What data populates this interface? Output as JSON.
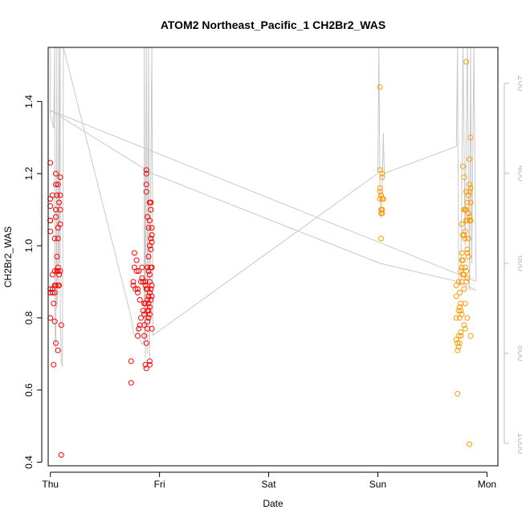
{
  "chart_data": {
    "type": "scatter",
    "title": "ATOM2 Northeast_Pacific_1 CH2Br2_WAS",
    "xlabel": "Date",
    "ylabel": "CH2Br2_WAS",
    "x_ticks": [
      "Thu",
      "Fri",
      "Sat",
      "Sun",
      "Mon"
    ],
    "xlim": [
      -0.02,
      4.1
    ],
    "ylim": [
      0.39,
      1.55
    ],
    "y_ticks": [
      "0.4",
      "0.6",
      "0.8",
      "1.0",
      "1.2",
      "1.4"
    ],
    "y2_ticks": [
      "200",
      "400",
      "600",
      "800",
      "1000"
    ],
    "y2lim": [
      1050,
      120
    ],
    "colors": {
      "series_red": "#ff0000",
      "series_orange": "#ff9900",
      "line": "#c8c8c8",
      "axis": "#000000",
      "right_axis": "#bdbdbd"
    },
    "series": [
      {
        "color": "red",
        "points": [
          [
            0.0,
            1.23
          ],
          [
            0.0,
            1.13
          ],
          [
            0.0,
            1.11
          ],
          [
            0.0,
            1.07
          ],
          [
            0.0,
            1.07
          ],
          [
            0.0,
            1.04
          ],
          [
            0.0,
            0.88
          ],
          [
            0.0,
            0.87
          ],
          [
            0.0,
            0.8
          ],
          [
            0.02,
            1.14
          ],
          [
            0.02,
            0.92
          ],
          [
            0.02,
            0.88
          ],
          [
            0.02,
            0.87
          ],
          [
            0.03,
            0.67
          ],
          [
            0.03,
            0.84
          ],
          [
            0.04,
            1.02
          ],
          [
            0.04,
            0.93
          ],
          [
            0.04,
            0.89
          ],
          [
            0.04,
            0.87
          ],
          [
            0.04,
            0.79
          ],
          [
            0.05,
            1.2
          ],
          [
            0.05,
            1.17
          ],
          [
            0.05,
            1.1
          ],
          [
            0.05,
            1.08
          ],
          [
            0.05,
            0.89
          ],
          [
            0.05,
            0.73
          ],
          [
            0.06,
            1.14
          ],
          [
            0.06,
            0.97
          ],
          [
            0.06,
            0.93
          ],
          [
            0.07,
            1.17
          ],
          [
            0.07,
            1.05
          ],
          [
            0.07,
            1.02
          ],
          [
            0.07,
            0.94
          ],
          [
            0.07,
            0.93
          ],
          [
            0.07,
            0.89
          ],
          [
            0.07,
            0.71
          ],
          [
            0.08,
            1.12
          ],
          [
            0.08,
            0.92
          ],
          [
            0.08,
            0.89
          ],
          [
            0.09,
            1.19
          ],
          [
            0.09,
            1.14
          ],
          [
            0.09,
            1.1
          ],
          [
            0.09,
            1.06
          ],
          [
            0.09,
            0.93
          ],
          [
            0.1,
            0.78
          ],
          [
            0.1,
            0.42
          ],
          [
            0.74,
            0.68
          ],
          [
            0.74,
            0.62
          ],
          [
            0.76,
            0.89
          ],
          [
            0.76,
            0.9
          ],
          [
            0.77,
            0.94
          ],
          [
            0.77,
            0.98
          ],
          [
            0.78,
            0.88
          ],
          [
            0.79,
            0.93
          ],
          [
            0.79,
            0.96
          ],
          [
            0.8,
            0.87
          ],
          [
            0.8,
            0.75
          ],
          [
            0.8,
            0.88
          ],
          [
            0.81,
            0.77
          ],
          [
            0.81,
            0.93
          ],
          [
            0.82,
            0.85
          ],
          [
            0.82,
            0.78
          ],
          [
            0.83,
            0.8
          ],
          [
            0.83,
            0.9
          ],
          [
            0.84,
            0.91
          ],
          [
            0.84,
            0.94
          ],
          [
            0.85,
            0.9
          ],
          [
            0.85,
            0.82
          ],
          [
            0.86,
            0.81
          ],
          [
            0.86,
            0.84
          ],
          [
            0.86,
            0.78
          ],
          [
            0.86,
            0.75
          ],
          [
            0.87,
            0.9
          ],
          [
            0.87,
            0.89
          ],
          [
            0.87,
            0.84
          ],
          [
            0.87,
            0.67
          ],
          [
            0.88,
            0.88
          ],
          [
            0.88,
            1.21
          ],
          [
            0.88,
            1.2
          ],
          [
            0.88,
            1.17
          ],
          [
            0.88,
            1.15
          ],
          [
            0.88,
            0.73
          ],
          [
            0.88,
            0.66
          ],
          [
            0.89,
            1.08
          ],
          [
            0.89,
            0.94
          ],
          [
            0.89,
            0.88
          ],
          [
            0.89,
            0.85
          ],
          [
            0.89,
            0.82
          ],
          [
            0.89,
            0.79
          ],
          [
            0.89,
            0.77
          ],
          [
            0.9,
            1.05
          ],
          [
            0.9,
            0.97
          ],
          [
            0.9,
            0.93
          ],
          [
            0.9,
            0.86
          ],
          [
            0.9,
            0.84
          ],
          [
            0.9,
            0.82
          ],
          [
            0.9,
            0.8
          ],
          [
            0.91,
            1.12
          ],
          [
            0.91,
            1.07
          ],
          [
            0.91,
            1.0
          ],
          [
            0.91,
            0.92
          ],
          [
            0.91,
            0.9
          ],
          [
            0.91,
            0.87
          ],
          [
            0.91,
            0.83
          ],
          [
            0.91,
            0.81
          ],
          [
            0.91,
            0.68
          ],
          [
            0.91,
            0.67
          ],
          [
            0.92,
            1.12
          ],
          [
            0.92,
            1.1
          ],
          [
            0.92,
            1.02
          ],
          [
            0.92,
            0.99
          ],
          [
            0.92,
            0.94
          ],
          [
            0.92,
            0.88
          ],
          [
            0.92,
            0.85
          ],
          [
            0.93,
            1.05
          ],
          [
            0.93,
            1.03
          ],
          [
            0.93,
            1.01
          ],
          [
            0.93,
            0.94
          ],
          [
            0.93,
            0.89
          ],
          [
            0.93,
            0.86
          ],
          [
            0.93,
            0.77
          ]
        ]
      },
      {
        "color": "orange",
        "points": [
          [
            3.02,
            1.44
          ],
          [
            3.02,
            1.21
          ],
          [
            3.02,
            1.16
          ],
          [
            3.02,
            1.15
          ],
          [
            3.02,
            1.13
          ],
          [
            3.03,
            1.14
          ],
          [
            3.03,
            1.1
          ],
          [
            3.03,
            1.09
          ],
          [
            3.03,
            1.02
          ],
          [
            3.04,
            1.2
          ],
          [
            3.04,
            1.19
          ],
          [
            3.04,
            1.13
          ],
          [
            3.04,
            1.1
          ],
          [
            3.04,
            1.09
          ],
          [
            3.05,
            1.13
          ],
          [
            3.72,
            0.89
          ],
          [
            3.72,
            0.86
          ],
          [
            3.72,
            0.8
          ],
          [
            3.72,
            0.74
          ],
          [
            3.73,
            0.73
          ],
          [
            3.73,
            0.71
          ],
          [
            3.73,
            0.59
          ],
          [
            3.74,
            0.9
          ],
          [
            3.74,
            0.82
          ],
          [
            3.74,
            0.75
          ],
          [
            3.74,
            0.72
          ],
          [
            3.75,
            0.87
          ],
          [
            3.75,
            0.83
          ],
          [
            3.75,
            0.8
          ],
          [
            3.75,
            0.73
          ],
          [
            3.76,
            0.93
          ],
          [
            3.76,
            0.84
          ],
          [
            3.76,
            0.82
          ],
          [
            3.76,
            0.76
          ],
          [
            3.76,
            0.75
          ],
          [
            3.77,
            1.06
          ],
          [
            3.77,
            0.98
          ],
          [
            3.77,
            0.96
          ],
          [
            3.77,
            0.94
          ],
          [
            3.77,
            0.9
          ],
          [
            3.77,
            0.81
          ],
          [
            3.78,
            1.22
          ],
          [
            3.78,
            1.03
          ],
          [
            3.78,
            0.96
          ],
          [
            3.78,
            0.92
          ],
          [
            3.79,
            1.19
          ],
          [
            3.79,
            1.1
          ],
          [
            3.79,
            1.03
          ],
          [
            3.79,
            0.92
          ],
          [
            3.79,
            0.88
          ],
          [
            3.79,
            0.78
          ],
          [
            3.8,
            1.1
          ],
          [
            3.8,
            1.04
          ],
          [
            3.8,
            1.02
          ],
          [
            3.8,
            0.94
          ],
          [
            3.8,
            0.84
          ],
          [
            3.8,
            0.77
          ],
          [
            3.81,
            1.51
          ],
          [
            3.81,
            1.15
          ],
          [
            3.81,
            1.1
          ],
          [
            3.81,
            1.07
          ],
          [
            3.81,
            0.93
          ],
          [
            3.81,
            0.9
          ],
          [
            3.82,
            1.12
          ],
          [
            3.82,
            1.07
          ],
          [
            3.82,
            0.99
          ],
          [
            3.82,
            0.98
          ],
          [
            3.82,
            0.91
          ],
          [
            3.82,
            0.8
          ],
          [
            3.83,
            1.14
          ],
          [
            3.83,
            1.09
          ],
          [
            3.83,
            1.02
          ],
          [
            3.83,
            0.97
          ],
          [
            3.84,
            1.24
          ],
          [
            3.84,
            1.17
          ],
          [
            3.84,
            1.15
          ],
          [
            3.84,
            1.08
          ],
          [
            3.84,
            1.07
          ],
          [
            3.84,
            0.45
          ],
          [
            3.85,
            1.3
          ],
          [
            3.85,
            1.16
          ],
          [
            3.85,
            1.12
          ],
          [
            3.85,
            1.07
          ],
          [
            3.85,
            0.75
          ]
        ]
      }
    ],
    "line_series": {
      "name": "",
      "axis": "right",
      "points": [
        [
          0.0,
          120
        ],
        [
          0.0,
          260
        ],
        [
          0.0,
          270
        ],
        [
          0.01,
          280
        ],
        [
          0.02,
          290
        ],
        [
          0.03,
          300
        ],
        [
          0.04,
          120
        ],
        [
          0.04,
          700
        ],
        [
          0.04,
          730
        ],
        [
          0.05,
          800
        ],
        [
          0.05,
          780
        ],
        [
          0.06,
          120
        ],
        [
          0.06,
          640
        ],
        [
          0.06,
          700
        ],
        [
          0.07,
          660
        ],
        [
          0.08,
          120
        ],
        [
          0.08,
          600
        ],
        [
          0.09,
          120
        ],
        [
          0.09,
          700
        ],
        [
          0.1,
          820
        ],
        [
          0.11,
          830
        ],
        [
          0.12,
          120
        ],
        [
          0.74,
          720
        ],
        [
          0.75,
          735
        ],
        [
          0.76,
          750
        ],
        [
          0.77,
          760
        ],
        [
          0.78,
          762
        ],
        [
          0.8,
          740
        ],
        [
          0.82,
          770
        ],
        [
          0.84,
          780
        ],
        [
          0.86,
          770
        ],
        [
          0.86,
          120
        ],
        [
          0.87,
          810
        ],
        [
          0.88,
          120
        ],
        [
          0.89,
          800
        ],
        [
          0.9,
          120
        ],
        [
          0.91,
          810
        ],
        [
          0.92,
          390
        ],
        [
          0.93,
          120
        ],
        [
          0.94,
          760
        ],
        [
          3.0,
          400
        ],
        [
          3.01,
          120
        ],
        [
          3.02,
          450
        ],
        [
          3.03,
          500
        ],
        [
          3.04,
          440
        ],
        [
          3.05,
          310
        ],
        [
          3.06,
          400
        ],
        [
          3.72,
          340
        ],
        [
          3.73,
          120
        ],
        [
          3.74,
          640
        ],
        [
          3.76,
          650
        ],
        [
          3.78,
          120
        ],
        [
          3.8,
          560
        ],
        [
          3.82,
          120
        ],
        [
          3.84,
          660
        ],
        [
          3.85,
          120
        ],
        [
          3.86,
          600
        ],
        [
          3.88,
          120
        ],
        [
          3.9,
          640
        ],
        [
          0.0,
          260
        ],
        [
          0.93,
          400
        ],
        [
          3.02,
          600
        ],
        [
          3.72,
          640
        ],
        [
          3.9,
          660
        ]
      ]
    }
  }
}
